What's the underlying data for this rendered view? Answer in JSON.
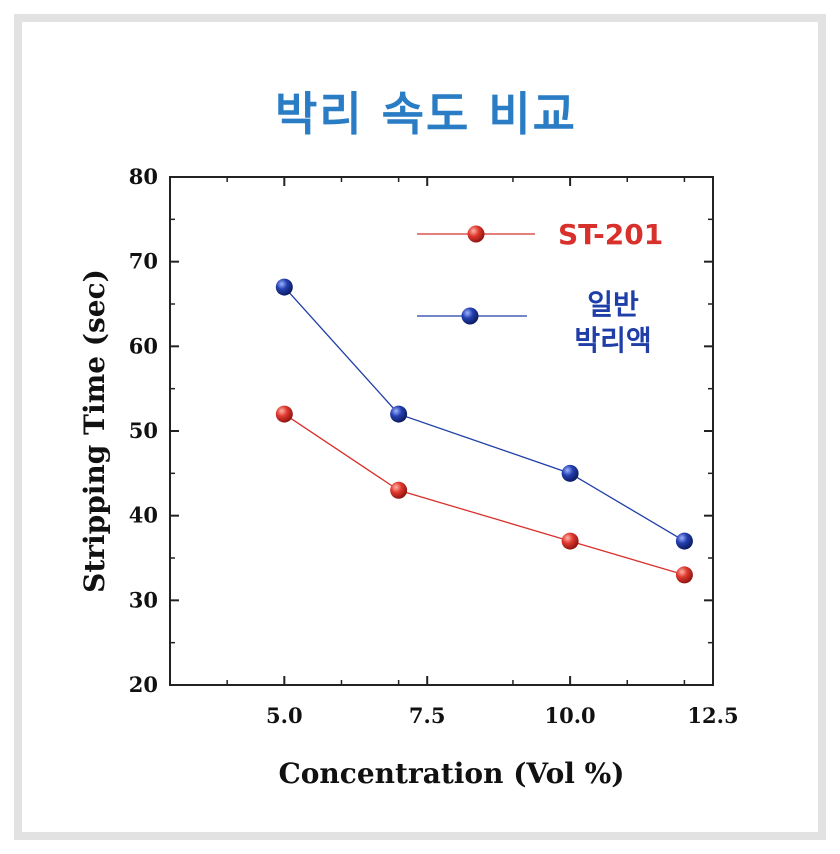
{
  "chart_data": {
    "type": "line",
    "title": "박리 속도 비교",
    "xlabel": "Concentration (Vol %)",
    "ylabel": "Stripping Time (sec)",
    "xlim": [
      3,
      12.5
    ],
    "ylim": [
      20,
      80
    ],
    "xticks": [
      5.0,
      7.5,
      10.0,
      12.5
    ],
    "xtick_labels": [
      "5.0",
      "7.5",
      "10.0",
      "12.5"
    ],
    "xminor": [
      4,
      6,
      7,
      9,
      11,
      12
    ],
    "yticks": [
      20,
      30,
      40,
      50,
      60,
      70,
      80
    ],
    "ytick_labels": [
      "20",
      "30",
      "40",
      "50",
      "60",
      "70",
      "80"
    ],
    "grid": false,
    "legend_position": "top-right",
    "x": [
      5,
      7,
      10,
      12
    ],
    "series": [
      {
        "name": "ST-201",
        "values": [
          52,
          43,
          37,
          33
        ],
        "color": "#d8312c",
        "label_lines": [
          "ST-201"
        ]
      },
      {
        "name": "일반 박리액",
        "values": [
          67,
          52,
          45,
          37
        ],
        "color": "#1f3ea8",
        "label_lines": [
          "일반",
          "박리액"
        ]
      }
    ],
    "title_color": "#2a7dc4"
  }
}
